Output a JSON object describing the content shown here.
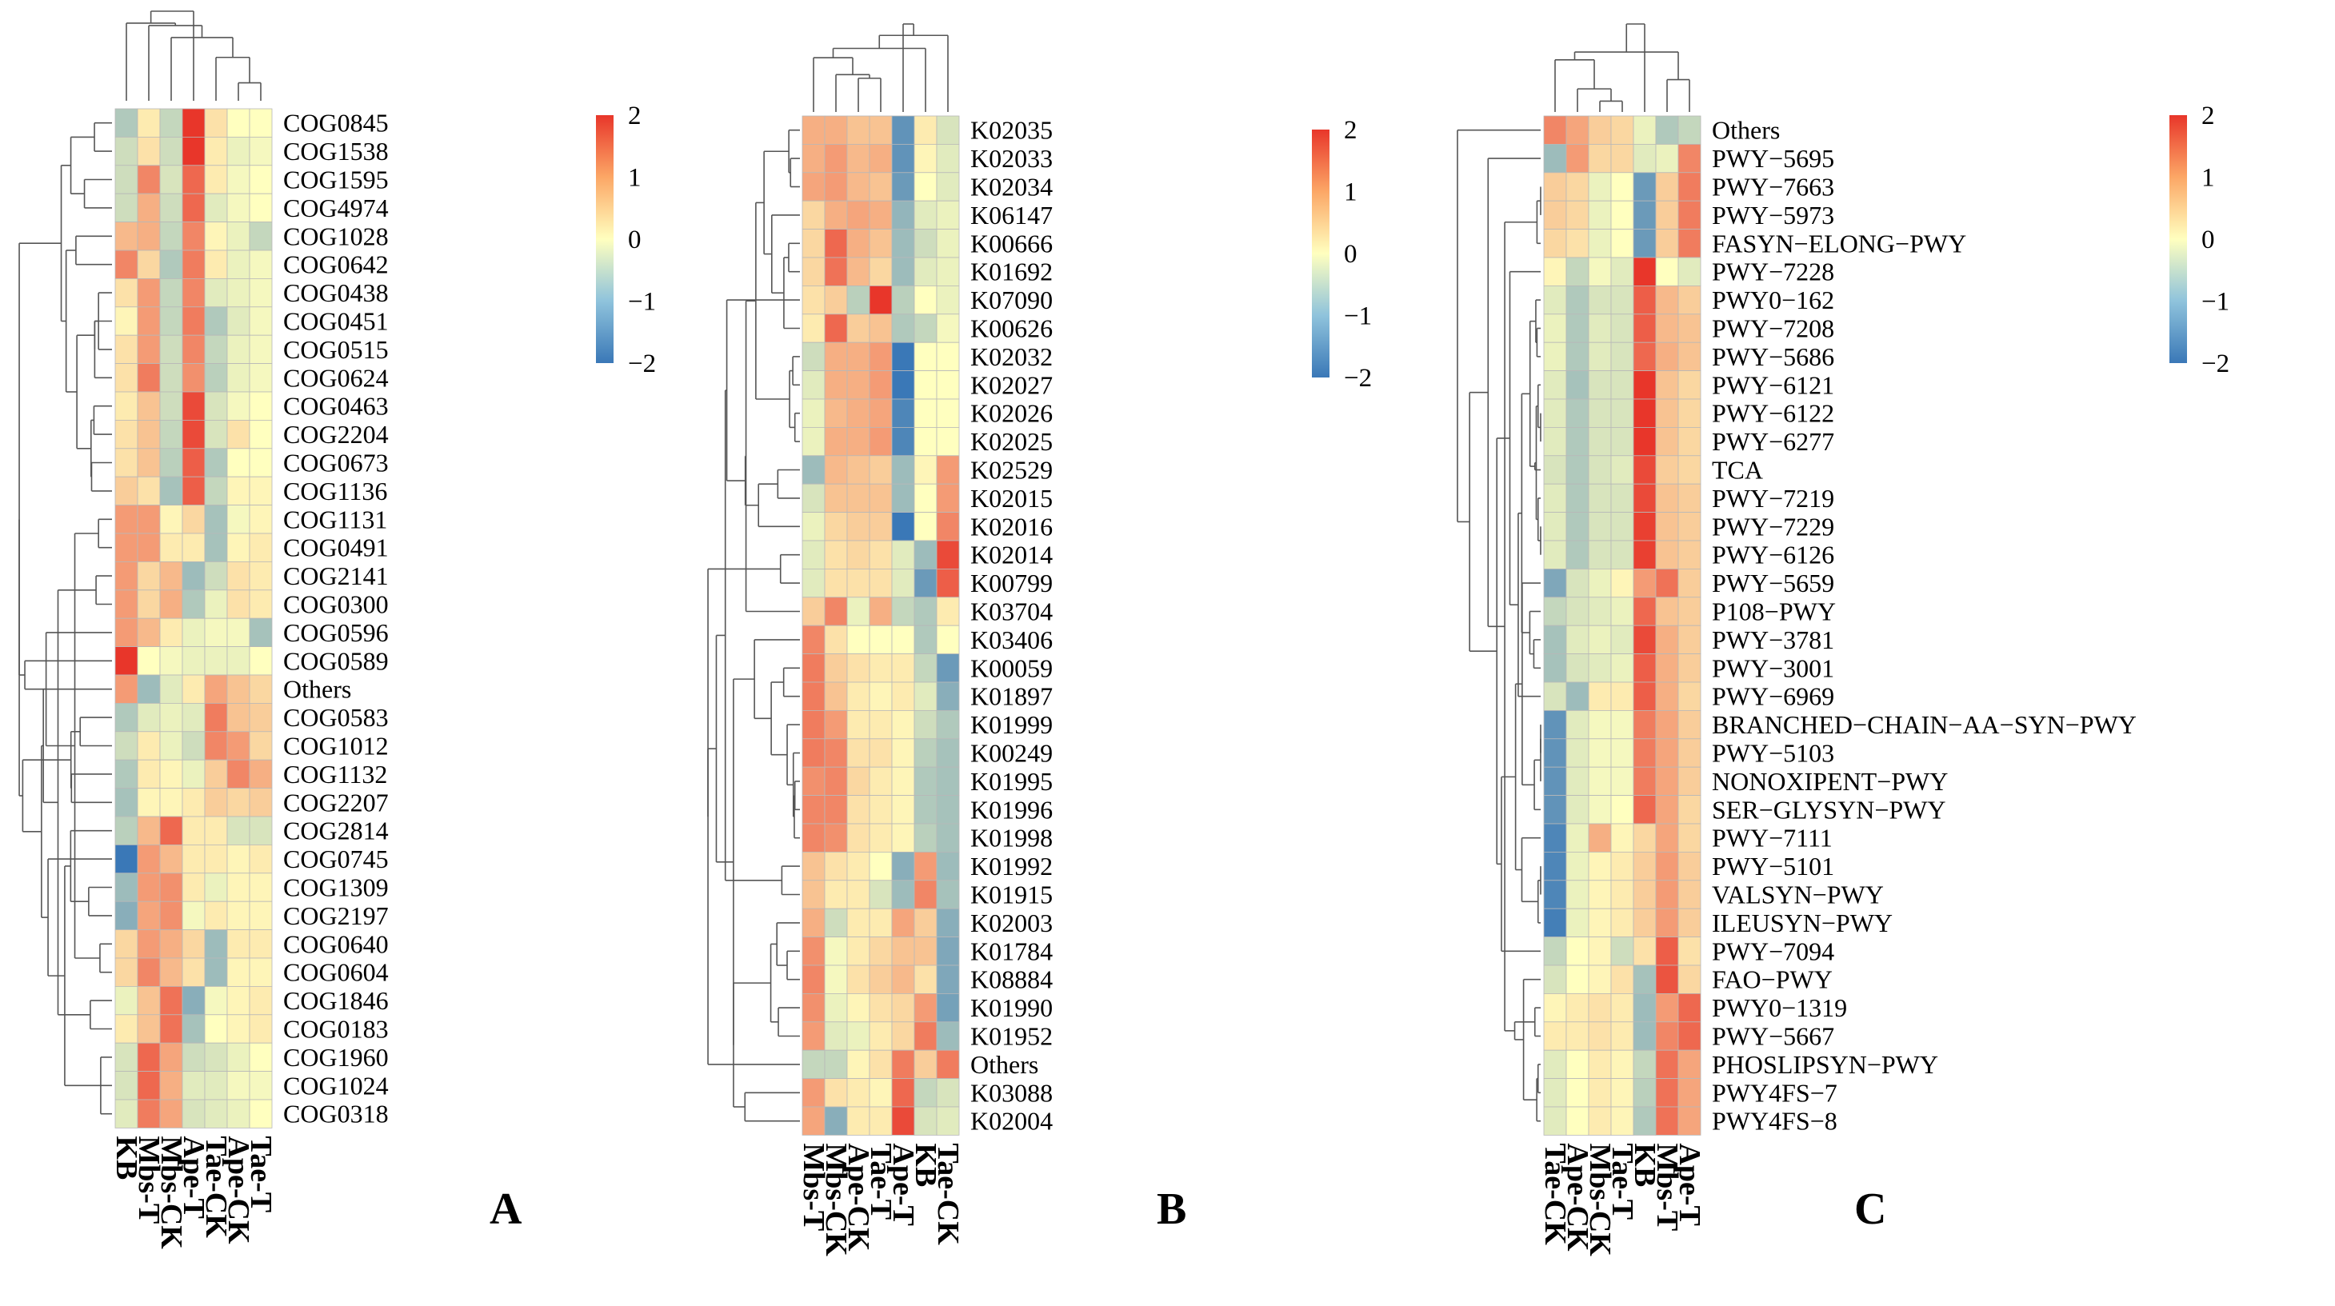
{
  "chart_data": [
    {
      "type": "heatmap",
      "panel_label": "A",
      "columns": [
        "KB",
        "Mbs-T",
        "Mbs-CK",
        "Ape-T",
        "Tae-CK",
        "Ape-CK",
        "Tae-T"
      ],
      "rows": [
        "COG0845",
        "COG1538",
        "COG1595",
        "COG4974",
        "COG1028",
        "COG0642",
        "COG0438",
        "COG0451",
        "COG0515",
        "COG0624",
        "COG0463",
        "COG2204",
        "COG0673",
        "COG1136",
        "COG1131",
        "COG0491",
        "COG2141",
        "COG0300",
        "COG0596",
        "COG0589",
        "Others",
        "COG0583",
        "COG1012",
        "COG1132",
        "COG2207",
        "COG2814",
        "COG0745",
        "COG1309",
        "COG2197",
        "COG0640",
        "COG0604",
        "COG1846",
        "COG0183",
        "COG1960",
        "COG1024",
        "COG0318"
      ],
      "values": [
        [
          -0.8,
          0.2,
          -0.6,
          2.0,
          0.3,
          0.0,
          0.0
        ],
        [
          -0.5,
          0.3,
          -0.5,
          2.0,
          0.2,
          -0.2,
          -0.1
        ],
        [
          -0.5,
          1.2,
          -0.4,
          1.5,
          0.2,
          -0.1,
          0.0
        ],
        [
          -0.5,
          0.8,
          -0.5,
          1.5,
          -0.3,
          -0.1,
          0.0
        ],
        [
          0.7,
          0.8,
          -0.6,
          1.2,
          0.1,
          -0.2,
          -0.6
        ],
        [
          1.2,
          0.4,
          -0.8,
          1.3,
          0.2,
          -0.2,
          -0.1
        ],
        [
          0.3,
          1.0,
          -0.6,
          1.2,
          -0.3,
          -0.2,
          -0.1
        ],
        [
          0.1,
          1.0,
          -0.6,
          1.3,
          -0.8,
          -0.3,
          -0.1
        ],
        [
          0.3,
          1.0,
          -0.5,
          1.2,
          -0.6,
          -0.2,
          -0.1
        ],
        [
          0.3,
          1.3,
          -0.5,
          1.1,
          -0.7,
          -0.2,
          -0.1
        ],
        [
          0.2,
          0.6,
          -0.5,
          1.8,
          -0.4,
          -0.1,
          0.0
        ],
        [
          0.3,
          0.6,
          -0.6,
          1.8,
          -0.4,
          0.3,
          0.0
        ],
        [
          0.3,
          0.6,
          -0.7,
          1.6,
          -0.8,
          0.0,
          0.0
        ],
        [
          0.5,
          0.3,
          -0.9,
          1.6,
          -0.6,
          0.1,
          0.1
        ],
        [
          1.0,
          1.0,
          0.1,
          0.4,
          -0.9,
          -0.1,
          0.1
        ],
        [
          1.0,
          1.0,
          0.2,
          0.2,
          -0.9,
          0.1,
          0.2
        ],
        [
          1.0,
          0.4,
          0.7,
          -1.0,
          -0.5,
          0.3,
          0.2
        ],
        [
          1.0,
          0.4,
          0.8,
          -0.8,
          -0.2,
          0.3,
          0.2
        ],
        [
          1.0,
          0.7,
          0.2,
          -0.2,
          -0.1,
          -0.1,
          -0.9
        ],
        [
          2.0,
          0.0,
          -0.1,
          -0.2,
          -0.2,
          -0.2,
          0.0
        ],
        [
          1.0,
          -1.0,
          -0.3,
          0.2,
          0.9,
          0.6,
          0.4
        ],
        [
          -0.8,
          -0.3,
          -0.2,
          -0.3,
          1.3,
          0.6,
          0.5
        ],
        [
          -0.5,
          0.2,
          -0.2,
          -0.5,
          1.2,
          1.0,
          0.4
        ],
        [
          -0.8,
          0.2,
          0.1,
          -0.2,
          0.5,
          1.2,
          0.8
        ],
        [
          -0.9,
          0.1,
          0.1,
          0.2,
          0.5,
          0.4,
          0.5
        ],
        [
          -0.7,
          0.7,
          1.5,
          0.2,
          0.2,
          -0.4,
          -0.4
        ],
        [
          -2.0,
          1.0,
          0.7,
          0.2,
          0.2,
          0.1,
          0.2
        ],
        [
          -1.0,
          1.0,
          1.1,
          0.2,
          -0.2,
          0.1,
          0.1
        ],
        [
          -1.2,
          0.9,
          1.1,
          -0.1,
          0.2,
          0.1,
          0.1
        ],
        [
          0.4,
          1.0,
          0.8,
          0.4,
          -1.0,
          0.2,
          0.2
        ],
        [
          0.4,
          1.2,
          0.7,
          0.3,
          -1.0,
          0.1,
          0.1
        ],
        [
          -0.2,
          0.6,
          1.4,
          -1.2,
          -0.1,
          0.1,
          0.2
        ],
        [
          0.2,
          0.6,
          1.4,
          -0.9,
          0.0,
          0.1,
          0.2
        ],
        [
          -0.4,
          1.5,
          0.9,
          -0.5,
          -0.4,
          -0.2,
          0.0
        ],
        [
          -0.4,
          1.5,
          0.8,
          -0.3,
          -0.3,
          -0.1,
          -0.1
        ],
        [
          -0.3,
          1.3,
          0.9,
          -0.4,
          -0.3,
          -0.2,
          0.0
        ]
      ],
      "color_scale": {
        "min": -2,
        "max": 2,
        "low": "#3a78b7",
        "mid": "#ffffbf",
        "high": "#e8362a"
      },
      "legend_ticks": [
        2,
        1,
        0,
        -1,
        -2
      ]
    },
    {
      "type": "heatmap",
      "panel_label": "B",
      "columns": [
        "Mbs-T",
        "Mbs-CK",
        "Ape-CK",
        "Tae-T",
        "Ape-T",
        "KB",
        "Tae-CK"
      ],
      "rows": [
        "K02035",
        "K02033",
        "K02034",
        "K06147",
        "K00666",
        "K01692",
        "K07090",
        "K00626",
        "K02032",
        "K02027",
        "K02026",
        "K02025",
        "K02529",
        "K02015",
        "K02016",
        "K02014",
        "K00799",
        "K03704",
        "K03406",
        "K00059",
        "K01897",
        "K01999",
        "K00249",
        "K01995",
        "K01996",
        "K01998",
        "K01992",
        "K01915",
        "K02003",
        "K01784",
        "K08884",
        "K01990",
        "K01952",
        "Others",
        "K03088",
        "K02004"
      ],
      "values": [
        [
          0.8,
          0.8,
          0.6,
          0.6,
          -1.6,
          0.2,
          -0.4
        ],
        [
          0.8,
          1.0,
          0.7,
          0.8,
          -1.6,
          0.1,
          -0.3
        ],
        [
          0.9,
          1.0,
          0.7,
          0.6,
          -1.5,
          0.0,
          -0.3
        ],
        [
          0.4,
          0.8,
          0.9,
          0.8,
          -1.1,
          -0.3,
          -0.2
        ],
        [
          0.4,
          1.5,
          0.8,
          0.6,
          -1.0,
          -0.5,
          -0.2
        ],
        [
          0.4,
          1.4,
          0.7,
          0.4,
          -1.0,
          -0.3,
          -0.2
        ],
        [
          0.3,
          0.5,
          -0.7,
          2.0,
          -0.7,
          0.0,
          -0.2
        ],
        [
          0.2,
          1.5,
          0.5,
          0.6,
          -0.8,
          -0.6,
          -0.1
        ],
        [
          -0.5,
          0.8,
          0.8,
          1.0,
          -2.0,
          0.0,
          0.0
        ],
        [
          -0.3,
          0.8,
          0.8,
          1.0,
          -2.0,
          0.0,
          0.0
        ],
        [
          -0.2,
          0.7,
          0.8,
          0.9,
          -1.8,
          0.0,
          0.0
        ],
        [
          -0.2,
          0.8,
          0.8,
          1.0,
          -1.8,
          0.0,
          0.0
        ],
        [
          -1.0,
          0.7,
          0.6,
          0.5,
          -1.0,
          0.1,
          1.0
        ],
        [
          -0.4,
          0.6,
          0.6,
          0.6,
          -1.0,
          0.0,
          1.0
        ],
        [
          -0.2,
          0.4,
          0.5,
          0.5,
          -2.0,
          0.0,
          1.2
        ],
        [
          -0.3,
          0.3,
          0.4,
          0.3,
          -0.3,
          -1.0,
          1.8
        ],
        [
          -0.3,
          0.3,
          0.3,
          0.3,
          -0.3,
          -1.5,
          1.6
        ],
        [
          0.5,
          1.2,
          -0.2,
          0.8,
          -0.6,
          -0.8,
          0.2
        ],
        [
          1.2,
          0.3,
          0.0,
          0.0,
          0.0,
          -0.8,
          0.0
        ],
        [
          1.3,
          0.5,
          0.3,
          0.2,
          0.2,
          -0.6,
          -1.5
        ],
        [
          1.3,
          0.6,
          0.2,
          0.1,
          0.2,
          -0.3,
          -1.2
        ],
        [
          1.3,
          1.0,
          0.2,
          0.2,
          0.1,
          -0.5,
          -0.8
        ],
        [
          1.3,
          1.2,
          0.3,
          0.3,
          0.1,
          -0.7,
          -0.9
        ],
        [
          1.1,
          1.2,
          0.4,
          0.2,
          0.1,
          -0.8,
          -0.9
        ],
        [
          1.2,
          1.2,
          0.3,
          0.2,
          0.1,
          -0.8,
          -0.9
        ],
        [
          1.2,
          1.1,
          0.3,
          0.2,
          0.1,
          -0.7,
          -0.9
        ],
        [
          0.6,
          0.3,
          0.2,
          0.0,
          -1.2,
          1.0,
          -1.0
        ],
        [
          0.6,
          0.2,
          0.2,
          -0.4,
          -1.0,
          1.2,
          -0.9
        ],
        [
          0.8,
          -0.5,
          0.2,
          0.2,
          0.9,
          0.5,
          -1.2
        ],
        [
          1.1,
          -0.1,
          0.2,
          0.4,
          0.6,
          0.6,
          -1.3
        ],
        [
          1.2,
          -0.1,
          0.3,
          0.5,
          0.7,
          0.3,
          -1.3
        ],
        [
          1.1,
          -0.2,
          0.1,
          0.3,
          0.4,
          1.0,
          -1.4
        ],
        [
          1.0,
          -0.3,
          -0.2,
          0.2,
          0.4,
          1.3,
          -1.0
        ],
        [
          -0.6,
          -0.6,
          0.1,
          0.3,
          1.3,
          0.5,
          1.3
        ],
        [
          1.0,
          0.3,
          0.2,
          0.1,
          1.5,
          -0.6,
          -0.4
        ],
        [
          0.9,
          -1.2,
          0.2,
          0.2,
          1.8,
          -0.4,
          -0.3
        ]
      ],
      "color_scale": {
        "min": -2,
        "max": 2,
        "low": "#3a78b7",
        "mid": "#ffffbf",
        "high": "#e8362a"
      },
      "legend_ticks": [
        2,
        1,
        0,
        -1,
        -2
      ]
    },
    {
      "type": "heatmap",
      "panel_label": "C",
      "columns": [
        "Tae-CK",
        "Ape-CK",
        "Mbs-CK",
        "Tae-T",
        "KB",
        "Mbs-T",
        "Ape-T"
      ],
      "rows": [
        "Others",
        "PWY−5695",
        "PWY−7663",
        "PWY−5973",
        "FASYN−ELONG−PWY",
        "PWY−7228",
        "PWY0−162",
        "PWY−7208",
        "PWY−5686",
        "PWY−6121",
        "PWY−6122",
        "PWY−6277",
        "TCA",
        "PWY−7219",
        "PWY−7229",
        "PWY−6126",
        "PWY−5659",
        "P108−PWY",
        "PWY−3781",
        "PWY−3001",
        "PWY−6969",
        "BRANCHED−CHAIN−AA−SYN−PWY",
        "PWY−5103",
        "NONOXIPENT−PWY",
        "SER−GLYSYN−PWY",
        "PWY−7111",
        "PWY−5101",
        "VALSYN−PWY",
        "ILEUSYN−PWY",
        "PWY−7094",
        "FAO−PWY",
        "PWY0−1319",
        "PWY−5667",
        "PHOSLIPSYN−PWY",
        "PWY4FS−7",
        "PWY4FS−8"
      ],
      "values": [
        [
          1.2,
          0.9,
          0.5,
          0.4,
          -0.2,
          -0.8,
          -0.6
        ],
        [
          -1.0,
          1.0,
          0.4,
          0.4,
          -0.3,
          -0.2,
          1.2
        ],
        [
          0.5,
          0.4,
          -0.2,
          0.0,
          -1.5,
          0.5,
          1.3
        ],
        [
          0.5,
          0.4,
          -0.2,
          0.0,
          -1.5,
          0.5,
          1.3
        ],
        [
          0.4,
          0.3,
          -0.2,
          0.0,
          -1.5,
          0.5,
          1.3
        ],
        [
          0.1,
          -0.6,
          -0.1,
          -0.3,
          2.0,
          0.0,
          -0.3
        ],
        [
          -0.3,
          -0.8,
          -0.4,
          -0.4,
          1.6,
          0.7,
          0.5
        ],
        [
          -0.2,
          -0.8,
          -0.3,
          -0.4,
          1.6,
          0.7,
          0.6
        ],
        [
          -0.2,
          -0.8,
          -0.3,
          -0.4,
          1.5,
          0.8,
          0.6
        ],
        [
          -0.3,
          -0.9,
          -0.4,
          -0.4,
          2.0,
          0.6,
          0.4
        ],
        [
          -0.3,
          -0.8,
          -0.4,
          -0.4,
          2.0,
          0.6,
          0.4
        ],
        [
          -0.3,
          -0.8,
          -0.4,
          -0.4,
          2.0,
          0.6,
          0.4
        ],
        [
          -0.4,
          -0.8,
          -0.4,
          -0.3,
          1.8,
          0.5,
          0.4
        ],
        [
          -0.3,
          -0.8,
          -0.4,
          -0.4,
          1.8,
          0.6,
          0.5
        ],
        [
          -0.3,
          -0.8,
          -0.4,
          -0.4,
          1.9,
          0.6,
          0.5
        ],
        [
          -0.3,
          -0.8,
          -0.4,
          -0.4,
          1.9,
          0.6,
          0.5
        ],
        [
          -1.3,
          -0.4,
          -0.2,
          0.1,
          1.0,
          1.4,
          0.5
        ],
        [
          -0.6,
          -0.4,
          -0.3,
          -0.2,
          1.5,
          0.6,
          0.5
        ],
        [
          -0.9,
          -0.3,
          -0.2,
          -0.3,
          1.8,
          0.8,
          0.5
        ],
        [
          -0.9,
          -0.4,
          -0.3,
          -0.2,
          1.6,
          0.8,
          0.5
        ],
        [
          -0.4,
          -1.0,
          0.2,
          0.2,
          1.6,
          0.8,
          0.4
        ],
        [
          -1.6,
          -0.3,
          -0.1,
          -0.1,
          1.3,
          0.9,
          0.5
        ],
        [
          -1.6,
          -0.3,
          -0.1,
          -0.1,
          1.3,
          0.9,
          0.5
        ],
        [
          -1.6,
          -0.3,
          -0.1,
          -0.1,
          1.3,
          0.9,
          0.5
        ],
        [
          -1.6,
          -0.3,
          -0.1,
          0.0,
          1.5,
          0.9,
          0.4
        ],
        [
          -1.8,
          -0.2,
          0.8,
          0.1,
          0.4,
          0.9,
          0.4
        ],
        [
          -1.8,
          -0.2,
          0.1,
          0.2,
          0.5,
          1.0,
          0.5
        ],
        [
          -1.8,
          -0.2,
          0.1,
          0.2,
          0.5,
          1.0,
          0.5
        ],
        [
          -1.9,
          -0.2,
          0.1,
          0.2,
          0.5,
          1.0,
          0.5
        ],
        [
          -0.6,
          0.0,
          0.1,
          -0.5,
          0.3,
          1.6,
          0.3
        ],
        [
          -0.4,
          0.0,
          0.1,
          0.3,
          -0.9,
          1.7,
          0.4
        ],
        [
          0.1,
          0.2,
          0.3,
          0.2,
          -1.0,
          1.0,
          1.5
        ],
        [
          0.2,
          0.2,
          0.3,
          0.2,
          -1.0,
          1.2,
          1.5
        ],
        [
          -0.3,
          0.0,
          0.2,
          0.1,
          -0.6,
          1.4,
          0.9
        ],
        [
          -0.3,
          0.0,
          0.2,
          0.1,
          -0.7,
          1.4,
          0.9
        ],
        [
          -0.3,
          0.0,
          0.2,
          0.1,
          -0.8,
          1.4,
          0.9
        ]
      ],
      "color_scale": {
        "min": -2,
        "max": 2,
        "low": "#3a78b7",
        "mid": "#ffffbf",
        "high": "#e8362a"
      },
      "legend_ticks": [
        2,
        1,
        0,
        -1,
        -2
      ]
    }
  ]
}
